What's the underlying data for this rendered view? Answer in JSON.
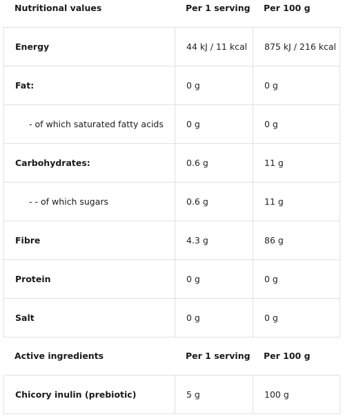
{
  "nutrition": {
    "headers": [
      "Nutritional values",
      "Per 1 serving",
      "Per 100 g"
    ],
    "rows": [
      {
        "name": "Energy",
        "serving": "44 kJ / 11 kcal",
        "per100": "875 kJ / 216 kcal"
      },
      {
        "name": "Fat:",
        "serving": "0 g",
        "per100": "0 g"
      },
      {
        "name": "- of which saturated fatty acids",
        "serving": "0 g",
        "per100": "0 g"
      },
      {
        "name": "Carbohydrates:",
        "serving": "0.6 g",
        "per100": "11 g"
      },
      {
        "name": "- - of which sugars",
        "serving": "0.6 g",
        "per100": "11 g"
      },
      {
        "name": "Fibre",
        "serving": "4.3 g",
        "per100": "86 g"
      },
      {
        "name": "Protein",
        "serving": "0 g",
        "per100": "0 g"
      },
      {
        "name": "Salt",
        "serving": "0 g",
        "per100": "0 g"
      }
    ]
  },
  "active": {
    "headers": [
      "Active ingredients",
      "Per 1 serving",
      "Per 100 g"
    ],
    "rows": [
      {
        "name": "Chicory inulin (prebiotic)",
        "serving": "5 g",
        "per100": "100 g"
      }
    ]
  }
}
